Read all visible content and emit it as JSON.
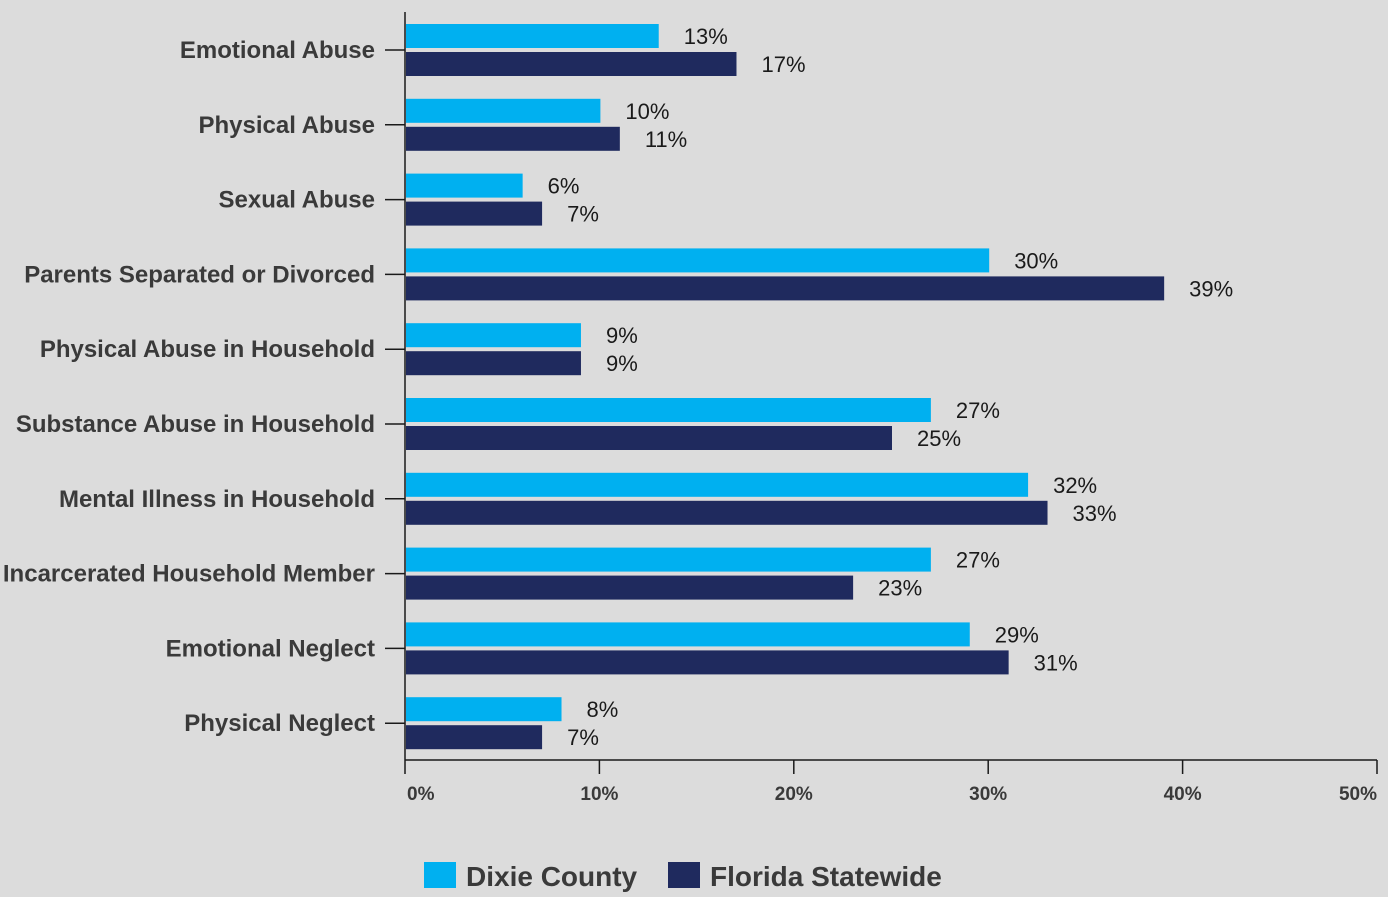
{
  "chart_data": {
    "type": "bar",
    "orientation": "horizontal",
    "categories": [
      "Emotional Abuse",
      "Physical Abuse",
      "Sexual Abuse",
      "Parents Separated or Divorced",
      "Physical Abuse in Household",
      "Substance Abuse in Household",
      "Mental Illness in Household",
      "Incarcerated Household Member",
      "Emotional Neglect",
      "Physical Neglect"
    ],
    "series": [
      {
        "name": "Dixie County",
        "color": "#00b0f0",
        "values": [
          13,
          10,
          6,
          30,
          9,
          27,
          32,
          27,
          29,
          8
        ],
        "labels": [
          "13%",
          "10%",
          "6%",
          "30%",
          "9%",
          "27%",
          "32%",
          "27%",
          "29%",
          "8%"
        ]
      },
      {
        "name": "Florida Statewide",
        "color": "#1f2a5e",
        "values": [
          17,
          11,
          7,
          39,
          9,
          25,
          33,
          23,
          31,
          7
        ],
        "labels": [
          "17%",
          "11%",
          "7%",
          "39%",
          "9%",
          "25%",
          "33%",
          "23%",
          "31%",
          "7%"
        ]
      }
    ],
    "xlim": [
      0,
      50
    ],
    "xticks": [
      0,
      10,
      20,
      30,
      40,
      50
    ],
    "xtick_labels": [
      "0%",
      "10%",
      "20%",
      "30%",
      "40%",
      "50%"
    ],
    "grid": false,
    "legend_position": "bottom-center",
    "title": "",
    "xlabel": "",
    "ylabel": ""
  }
}
